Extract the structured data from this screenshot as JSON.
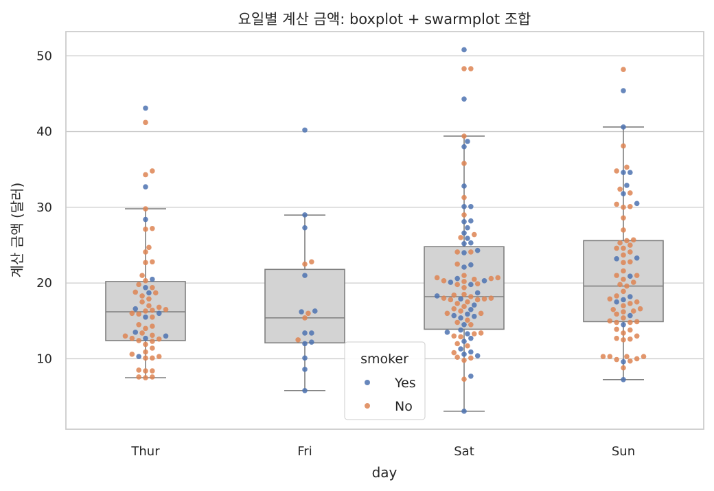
{
  "chart_data": {
    "type": "box+swarm",
    "title": "요일별 계산 금액: boxplot + swarmplot 조합",
    "xlabel": "day",
    "ylabel": "계산 금액 (달러)",
    "categories": [
      "Thur",
      "Fri",
      "Sat",
      "Sun"
    ],
    "ylim": [
      0.7,
      53.2
    ],
    "yticks": [
      "10",
      "20",
      "30",
      "40",
      "50"
    ],
    "grid": true,
    "legend": {
      "title": "smoker",
      "placement": "lower-center",
      "entries": [
        {
          "name": "Yes",
          "color": "#4c72b0"
        },
        {
          "name": "No",
          "color": "#dd8452"
        }
      ]
    },
    "box_color": "#d3d3d3",
    "box_edge_color": "#7f7f7f",
    "boxes": [
      {
        "category": "Thur",
        "whisker_low": 7.5,
        "q1": 12.4,
        "median": 16.2,
        "q3": 20.2,
        "whisker_high": 29.8
      },
      {
        "category": "Fri",
        "whisker_low": 5.8,
        "q1": 12.1,
        "median": 15.4,
        "q3": 21.8,
        "whisker_high": 28.97
      },
      {
        "category": "Sat",
        "whisker_low": 3.07,
        "q1": 13.9,
        "median": 18.2,
        "q3": 24.8,
        "whisker_high": 39.4
      },
      {
        "category": "Sun",
        "whisker_low": 7.25,
        "q1": 14.9,
        "median": 19.6,
        "q3": 25.6,
        "whisker_high": 40.6
      }
    ],
    "series": [
      {
        "name": "Yes",
        "color": "#4c72b0",
        "points": {
          "Thur": [
            43.1,
            32.7,
            28.4,
            20.5,
            19.4,
            18.7,
            16.6,
            16.0,
            15.5,
            13.5,
            13.0,
            12.7,
            10.3
          ],
          "Fri": [
            40.2,
            29.0,
            27.3,
            21.0,
            16.3,
            16.2,
            13.4,
            13.4,
            12.2,
            12.0,
            10.1,
            8.6,
            5.8
          ],
          "Sat": [
            50.8,
            44.3,
            38.7,
            38.0,
            32.8,
            30.1,
            30.1,
            28.2,
            28.1,
            27.3,
            26.6,
            25.9,
            25.3,
            25.2,
            24.3,
            24.0,
            22.4,
            22.1,
            20.6,
            20.3,
            20.1,
            19.8,
            18.7,
            18.3,
            17.9,
            17.1,
            16.5,
            15.9,
            15.7,
            15.6,
            15.4,
            14.5,
            13.8,
            13.5,
            13.3,
            12.7,
            12.3,
            11.3,
            10.9,
            10.6,
            10.4,
            7.7,
            3.07
          ],
          "Sun": [
            45.4,
            40.6,
            34.6,
            34.6,
            32.9,
            31.8,
            30.5,
            23.3,
            23.2,
            20.9,
            18.2,
            17.8,
            17.5,
            15.7,
            14.5,
            9.6,
            7.25
          ]
        }
      },
      {
        "name": "No",
        "color": "#dd8452",
        "points": {
          "Thur": [
            41.2,
            34.8,
            34.3,
            29.8,
            27.2,
            27.1,
            24.7,
            24.1,
            22.8,
            22.7,
            21.0,
            20.3,
            19.8,
            19.4,
            18.8,
            18.7,
            18.3,
            17.9,
            17.5,
            17.0,
            16.8,
            16.5,
            16.4,
            16.3,
            16.0,
            15.9,
            15.5,
            14.5,
            14.3,
            14.0,
            13.4,
            13.1,
            13.0,
            12.7,
            12.6,
            12.4,
            12.3,
            11.9,
            11.4,
            10.9,
            10.6,
            10.3,
            10.1,
            10.1,
            8.5,
            8.4,
            8.4,
            7.6,
            7.6,
            7.5
          ],
          "Fri": [
            22.8,
            22.5,
            16.0,
            15.4,
            12.5
          ],
          "Sat": [
            48.3,
            48.3,
            39.4,
            35.8,
            31.3,
            29.0,
            26.4,
            26.0,
            24.1,
            24.1,
            22.5,
            21.0,
            20.7,
            20.7,
            20.6,
            20.5,
            20.3,
            20.2,
            19.9,
            19.8,
            19.4,
            18.5,
            18.4,
            18.2,
            18.0,
            18.0,
            17.9,
            17.8,
            17.8,
            17.5,
            17.3,
            16.9,
            16.6,
            16.3,
            16.0,
            16.0,
            15.1,
            14.8,
            14.5,
            13.4,
            13.3,
            13.0,
            12.9,
            12.0,
            11.7,
            10.8,
            10.2,
            10.1,
            9.8,
            7.3
          ],
          "Sun": [
            48.2,
            38.1,
            35.3,
            34.8,
            32.4,
            31.9,
            30.4,
            30.1,
            30.0,
            28.6,
            27.0,
            25.7,
            25.6,
            25.3,
            25.0,
            24.6,
            24.6,
            24.1,
            23.7,
            22.8,
            22.7,
            21.6,
            21.0,
            21.0,
            20.5,
            20.1,
            19.8,
            19.6,
            18.9,
            18.3,
            17.9,
            17.5,
            17.3,
            17.0,
            16.6,
            16.5,
            16.3,
            16.2,
            15.9,
            15.4,
            15.0,
            14.9,
            14.8,
            14.8,
            13.9,
            13.8,
            13.4,
            13.0,
            12.7,
            12.6,
            12.5,
            10.3,
            10.3,
            10.3,
            10.3,
            10.0,
            9.9,
            9.7,
            8.8
          ]
        }
      }
    ]
  }
}
